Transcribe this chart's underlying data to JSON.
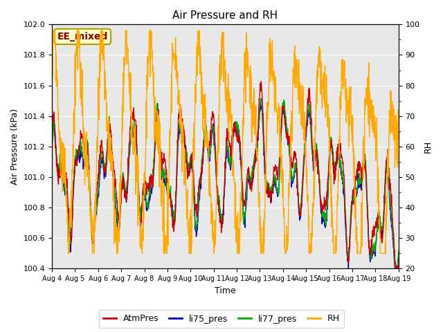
{
  "title": "Air Pressure and RH",
  "xlabel": "Time",
  "ylabel_left": "Air Pressure (kPa)",
  "ylabel_right": "RH",
  "annotation": "EE_mixed",
  "ylim_left": [
    100.4,
    102.0
  ],
  "ylim_right": [
    20,
    100
  ],
  "x_tick_labels": [
    "Aug 4",
    "Aug 5",
    "Aug 6",
    "Aug 7",
    "Aug 8",
    "Aug 9",
    "Aug 10",
    "Aug 11",
    "Aug 12",
    "Aug 13",
    "Aug 14",
    "Aug 15",
    "Aug 16",
    "Aug 17",
    "Aug 18",
    "Aug 19"
  ],
  "colors": {
    "AtmPres": "#cc0000",
    "li75_pres": "#0000cc",
    "li77_pres": "#00aa00",
    "RH": "#ffaa00"
  },
  "background_color": "#e8e8e8",
  "linewidth": 1.0
}
